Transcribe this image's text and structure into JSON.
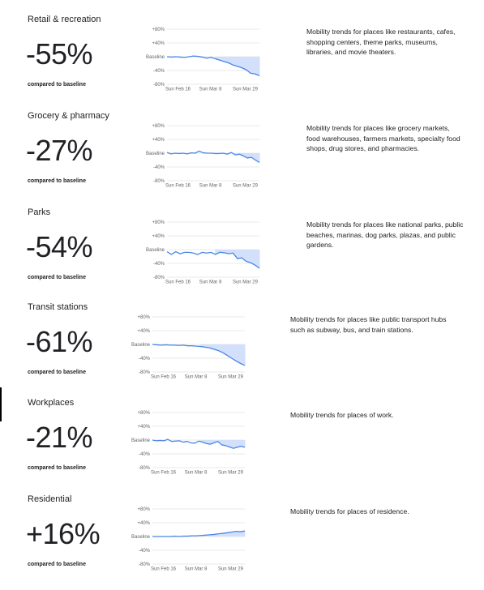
{
  "compare_label": "compared to baseline",
  "colors": {
    "line": "#4a86e8",
    "fill": "#d2e0fb",
    "grid": "#e0e0e0",
    "text": "#202124",
    "axis_text": "#5f6368"
  },
  "categories": [
    {
      "title": "Retail & recreation",
      "percent": "-55%",
      "description": "Mobility trends for places like restaurants, cafes, shopping centers, theme parks, museums, libraries, and movie theaters."
    },
    {
      "title": "Grocery & pharmacy",
      "percent": "-27%",
      "description": "Mobility trends for places like grocery markets, food warehouses, farmers markets, specialty food shops, drug stores, and pharmacies."
    },
    {
      "title": "Parks",
      "percent": "-54%",
      "description": "Mobility trends for places like national parks, public beaches, marinas, dog parks, plazas, and public gardens."
    },
    {
      "title": "Transit stations",
      "percent": "-61%",
      "description": "Mobility trends for places like public transport hubs such as subway, bus, and train stations."
    },
    {
      "title": "Workplaces",
      "percent": "-21%",
      "description": "Mobility trends for places of work."
    },
    {
      "title": "Residential",
      "percent": "+16%",
      "description": "Mobility trends for places of residence."
    }
  ],
  "chart_data": [
    {
      "type": "area",
      "x_ticks": [
        "Sun Feb 16",
        "Sun Mar 8",
        "Sun Mar 29"
      ],
      "y_ticks": [
        "+80%",
        "+40%",
        "Baseline",
        "-40%",
        "-80%"
      ],
      "ylim": [
        -80,
        80
      ],
      "baseline": 0,
      "series": [
        {
          "values": [
            0,
            -1,
            0,
            -1,
            -2,
            0,
            2,
            1,
            -1,
            -4,
            -2,
            -6,
            -10,
            -14,
            -18,
            -24,
            -28,
            -32,
            -38,
            -48,
            -50,
            -55
          ]
        }
      ]
    },
    {
      "type": "area",
      "x_ticks": [
        "Sun Feb 16",
        "Sun Mar 8",
        "Sun Mar 29"
      ],
      "y_ticks": [
        "+80%",
        "+40%",
        "Baseline",
        "-40%",
        "-80%"
      ],
      "ylim": [
        -80,
        80
      ],
      "baseline": 0,
      "series": [
        {
          "values": [
            2,
            -2,
            0,
            -1,
            0,
            -2,
            1,
            0,
            6,
            1,
            0,
            0,
            -1,
            -1,
            0,
            -3,
            2,
            -5,
            -3,
            -8,
            -14,
            -12,
            -20,
            -27
          ]
        }
      ]
    },
    {
      "type": "area",
      "x_ticks": [
        "Sun Feb 16",
        "Sun Mar 8",
        "Sun Mar 29"
      ],
      "y_ticks": [
        "+80%",
        "+40%",
        "Baseline",
        "-40%",
        "-80%"
      ],
      "ylim": [
        -80,
        80
      ],
      "baseline": 0,
      "series": [
        {
          "values": [
            -6,
            -14,
            -6,
            -12,
            -8,
            -8,
            -10,
            -14,
            -8,
            -10,
            -8,
            -14,
            -8,
            -9,
            -12,
            -10,
            -26,
            -24,
            -34,
            -38,
            -45,
            -54
          ]
        }
      ]
    },
    {
      "type": "area",
      "x_ticks": [
        "Sun Feb 16",
        "Sun Mar 8",
        "Sun Mar 29"
      ],
      "y_ticks": [
        "+80%",
        "+40%",
        "Baseline",
        "-40%",
        "-80%"
      ],
      "ylim": [
        -80,
        80
      ],
      "baseline": 0,
      "series": [
        {
          "values": [
            0,
            -1,
            -2,
            -1,
            -2,
            -2,
            -3,
            -2,
            -4,
            -4,
            -5,
            -6,
            -8,
            -10,
            -14,
            -18,
            -24,
            -32,
            -40,
            -48,
            -55,
            -61
          ]
        }
      ]
    },
    {
      "type": "area",
      "x_ticks": [
        "Sun Feb 16",
        "Sun Mar 8",
        "Sun Mar 29"
      ],
      "y_ticks": [
        "+80%",
        "+40%",
        "Baseline",
        "-40%",
        "-80%"
      ],
      "ylim": [
        -80,
        80
      ],
      "baseline": 0,
      "series": [
        {
          "values": [
            0,
            -2,
            -1,
            -2,
            2,
            -4,
            -3,
            -2,
            -6,
            -4,
            -8,
            -9,
            -3,
            -6,
            -10,
            -12,
            -8,
            -4,
            -14,
            -16,
            -20,
            -24,
            -21,
            -18,
            -21
          ]
        }
      ]
    },
    {
      "type": "area",
      "x_ticks": [
        "Sun Feb 16",
        "Sun Mar 8",
        "Sun Mar 29"
      ],
      "y_ticks": [
        "+80%",
        "+40%",
        "Baseline",
        "-40%",
        "-80%"
      ],
      "ylim": [
        -80,
        80
      ],
      "baseline": 0,
      "series": [
        {
          "values": [
            0,
            0,
            0,
            0,
            0,
            1,
            0,
            1,
            1,
            2,
            2,
            3,
            4,
            5,
            6,
            8,
            9,
            11,
            13,
            15,
            14,
            16
          ]
        }
      ]
    }
  ]
}
